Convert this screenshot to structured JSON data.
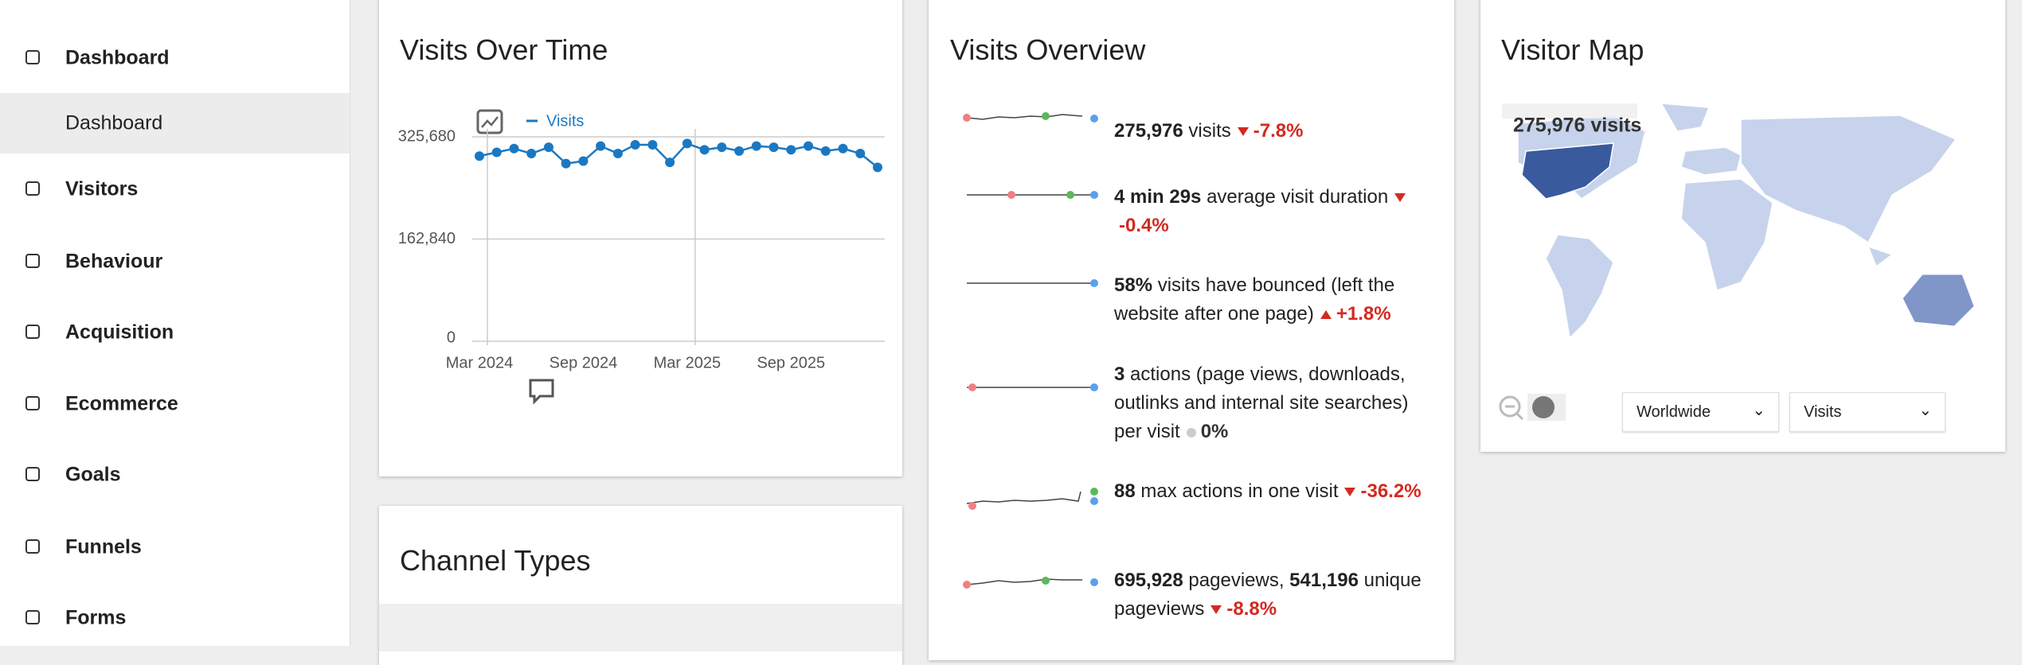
{
  "sidebar": {
    "sections": [
      "Dashboard",
      "Visitors",
      "Behaviour",
      "Acquisition",
      "Ecommerce",
      "Goals",
      "Funnels",
      "Forms"
    ],
    "submenu": [
      "Dashboard"
    ]
  },
  "visits_over_time": {
    "title": "Visits Over Time",
    "chart_data": {
      "type": "line",
      "categories": [
        "Mar 2024",
        null,
        null,
        null,
        null,
        null,
        "Sep 2024",
        null,
        null,
        null,
        null,
        null,
        "Mar 2025",
        null,
        null,
        null,
        null,
        null,
        "Sep 2025",
        null,
        null,
        null,
        null,
        null
      ],
      "series": [
        {
          "name": "Visits",
          "color": "#1a78c2",
          "values": [
            295000,
            301000,
            307000,
            299000,
            309000,
            283000,
            287000,
            311000,
            299000,
            313000,
            313000,
            285000,
            315000,
            305000,
            309000,
            303000,
            311000,
            309000,
            305000,
            311000,
            303000,
            307000,
            299000,
            277000
          ]
        }
      ],
      "ylim": [
        0,
        325680
      ],
      "yticks": [
        0,
        {
          "value": 162840,
          "label": "162,840"
        },
        {
          "value": 325680,
          "label": "325,680"
        }
      ],
      "grid": true
    }
  },
  "visits_overview": {
    "title": "Visits Overview",
    "items": [
      {
        "parts": [
          {
            "text": "275,976",
            "bold": true
          },
          {
            "text": " visits"
          }
        ],
        "change": "-7.8%",
        "trend": "down"
      },
      {
        "parts": [
          {
            "text": "4 min 29s",
            "bold": true
          },
          {
            "text": " average visit duration"
          }
        ],
        "change": "-0.4%",
        "trend": "down"
      },
      {
        "parts": [
          {
            "text": "58%",
            "bold": true
          },
          {
            "text": " visits have bounced (left the website after one page)"
          }
        ],
        "change": "+1.8%",
        "trend": "up"
      },
      {
        "parts": [
          {
            "text": "3",
            "bold": true
          },
          {
            "text": " actions (page views, downloads, outlinks and internal site searches) per visit"
          }
        ],
        "change": "0%",
        "trend": "flat"
      },
      {
        "parts": [
          {
            "text": "88",
            "bold": true
          },
          {
            "text": " max actions in one visit"
          }
        ],
        "change": "-36.2%",
        "trend": "down"
      },
      {
        "parts": [
          {
            "text": "695,928",
            "bold": true
          },
          {
            "text": " pageviews, "
          },
          {
            "text": "541,196",
            "bold": true
          },
          {
            "text": " unique pageviews"
          }
        ],
        "change": "-8.8%",
        "trend": "down"
      }
    ]
  },
  "visitor_map": {
    "title": "Visitor Map",
    "total_label": "275,976 visits",
    "region_select": "Worldwide",
    "metric_select": "Visits"
  },
  "channel_types": {
    "title": "Channel Types"
  }
}
